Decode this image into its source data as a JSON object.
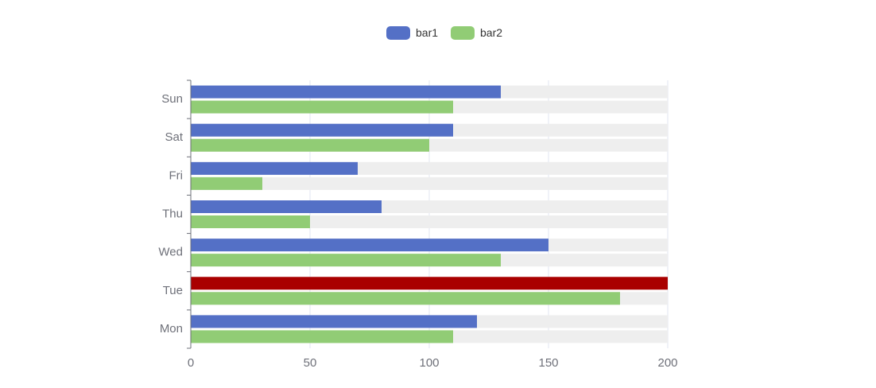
{
  "chart_data": {
    "type": "bar",
    "orientation": "horizontal",
    "categories": [
      "Mon",
      "Tue",
      "Wed",
      "Thu",
      "Fri",
      "Sat",
      "Sun"
    ],
    "series": [
      {
        "name": "bar1",
        "color": "#5470c6",
        "values": [
          120,
          200,
          150,
          80,
          70,
          110,
          130
        ]
      },
      {
        "name": "bar2",
        "color": "#91cc75",
        "values": [
          110,
          180,
          130,
          50,
          30,
          100,
          110
        ]
      }
    ],
    "highlight": {
      "series": "bar1",
      "category": "Tue",
      "color": "#a90000"
    },
    "background_bar_color": "#eeeeee",
    "xlim": [
      0,
      200
    ],
    "x_ticks": [
      0,
      50,
      100,
      150,
      200
    ],
    "grid": true,
    "legend_position": "top-center"
  }
}
